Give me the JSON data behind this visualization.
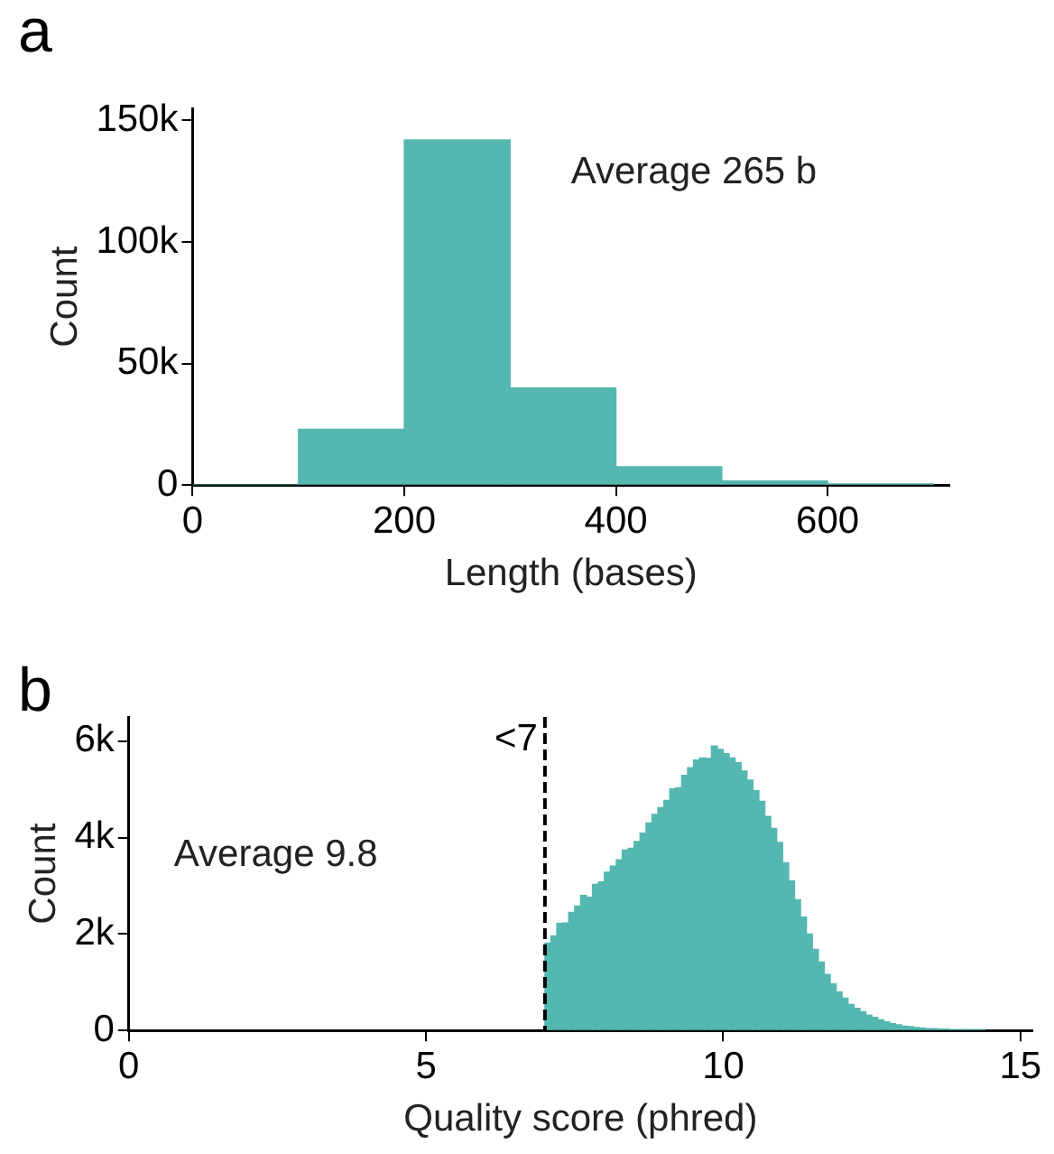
{
  "chart_data": [
    {
      "type": "histogram",
      "title": "a",
      "xlabel": "Length (bases)",
      "ylabel": "Count",
      "color": "#54b7b1",
      "bins": [
        0,
        100,
        200,
        300,
        400,
        500,
        600,
        700
      ],
      "values": [
        0,
        23000,
        142000,
        40000,
        7500,
        1700,
        500
      ],
      "xlim": [
        0,
        715
      ],
      "xticks": [
        0,
        200,
        400,
        600
      ],
      "ylim": [
        0,
        155000
      ],
      "yticks": [
        0,
        {
          "value": 50000,
          "label": "50k"
        },
        {
          "value": 100000,
          "label": "100k"
        },
        {
          "value": 150000,
          "label": "150k"
        }
      ],
      "annotations": [
        "Average 265 b"
      ],
      "grid": false,
      "legend": false
    },
    {
      "type": "histogram",
      "title": "b",
      "xlabel": "Quality score (phred)",
      "ylabel": "Count",
      "color": "#54b7b1",
      "bins": [
        7.0,
        7.1,
        7.2,
        7.3,
        7.4,
        7.5,
        7.6,
        7.7,
        7.8,
        7.9,
        8.0,
        8.1,
        8.2,
        8.3,
        8.4,
        8.5,
        8.6,
        8.7,
        8.8,
        8.9,
        9.0,
        9.1,
        9.2,
        9.3,
        9.4,
        9.5,
        9.6,
        9.7,
        9.8,
        9.9,
        10.0,
        10.1,
        10.2,
        10.3,
        10.4,
        10.5,
        10.6,
        10.7,
        10.8,
        10.9,
        11.0,
        11.1,
        11.2,
        11.3,
        11.4,
        11.5,
        11.6,
        11.7,
        11.8,
        11.9,
        12.0,
        12.1,
        12.2,
        12.3,
        12.4,
        12.5,
        12.6,
        12.7,
        12.8,
        12.9,
        13.0,
        13.1,
        13.2,
        13.3,
        13.4,
        13.5,
        13.6,
        13.7,
        13.8,
        13.9,
        14.0,
        14.1,
        14.2,
        14.3,
        14.4
      ],
      "values": [
        1810,
        1960,
        2220,
        2230,
        2450,
        2580,
        2800,
        2760,
        3030,
        3080,
        3280,
        3410,
        3540,
        3740,
        3780,
        3920,
        4090,
        4300,
        4480,
        4620,
        4770,
        5010,
        5030,
        5290,
        5450,
        5610,
        5650,
        5640,
        5900,
        5830,
        5740,
        5650,
        5550,
        5380,
        5190,
        4970,
        4750,
        4440,
        4190,
        3900,
        3480,
        3100,
        2710,
        2350,
        2000,
        1680,
        1420,
        1160,
        970,
        800,
        670,
        540,
        460,
        390,
        320,
        270,
        220,
        180,
        140,
        120,
        90,
        80,
        60,
        50,
        40,
        40,
        30,
        30,
        20,
        20,
        20,
        20,
        20,
        20
      ],
      "xlim": [
        0,
        15.2
      ],
      "xticks": [
        0,
        5,
        10,
        15
      ],
      "ylim": [
        0,
        6500
      ],
      "yticks": [
        0,
        {
          "value": 2000,
          "label": "2k"
        },
        {
          "value": 4000,
          "label": "4k"
        },
        {
          "value": 6000,
          "label": "6k"
        }
      ],
      "ref_lines": [
        {
          "axis": "x",
          "value": 7,
          "label": "<7",
          "color": "#000000",
          "line_style": "dashed"
        }
      ],
      "annotations": [
        "Average 9.8"
      ],
      "grid": false,
      "legend": false
    }
  ]
}
